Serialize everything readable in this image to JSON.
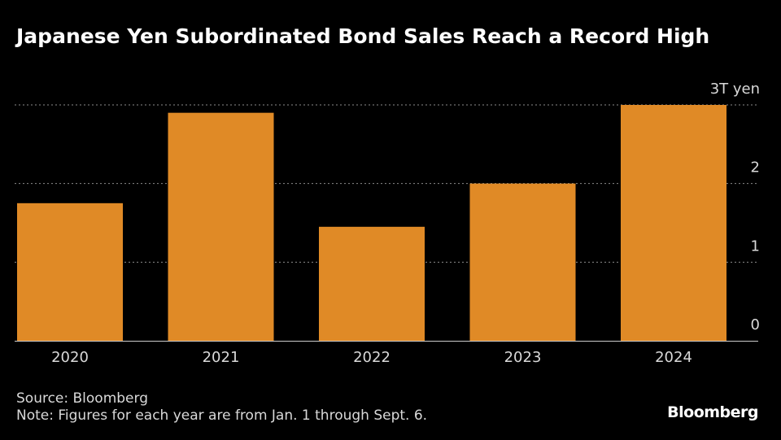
{
  "title": "Japanese Yen Subordinated Bond Sales Reach a Record High",
  "source": "Source: Bloomberg",
  "note": "Note: Figures for each year are from Jan. 1 through Sept. 6.",
  "brand": "Bloomberg",
  "colors": {
    "bar": "#e08a26",
    "grid": "#8c8c8c",
    "text": "#d9d9d9",
    "background": "#000000"
  },
  "chart_data": {
    "type": "bar",
    "categories": [
      "2020",
      "2021",
      "2022",
      "2023",
      "2024"
    ],
    "values": [
      1.75,
      2.9,
      1.45,
      2.0,
      3.0
    ],
    "y_ticks": [
      0,
      1,
      2,
      3
    ],
    "y_tick_labels": [
      "0",
      "1",
      "2",
      "3T yen"
    ],
    "ylim": [
      0,
      3
    ],
    "grid": true,
    "ylabel": ""
  }
}
